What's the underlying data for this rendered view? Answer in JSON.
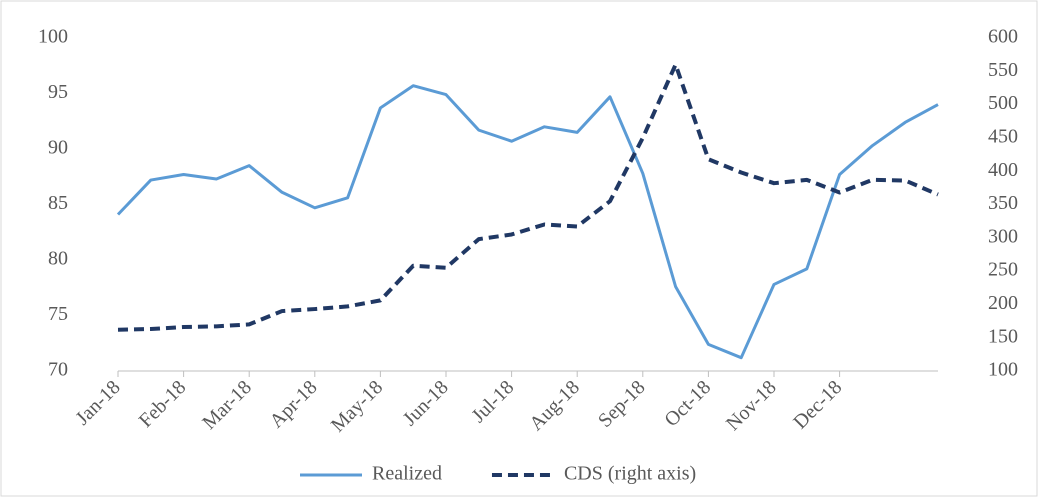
{
  "chart_data": {
    "type": "line",
    "categories": [
      "Jan-18",
      null,
      "Feb-18",
      null,
      "Mar-18",
      null,
      "Apr-18",
      null,
      "May-18",
      null,
      "Jun-18",
      null,
      "Jul-18",
      null,
      "Aug-18",
      null,
      "Sep-18",
      null,
      "Oct-18",
      null,
      "Nov-18",
      null,
      "Dec-18",
      null,
      null,
      null
    ],
    "series": [
      {
        "name": "Realized",
        "color": "#5b9bd5",
        "values": [
          84.1,
          87.2,
          87.7,
          87.3,
          88.5,
          86.1,
          84.7,
          85.6,
          93.7,
          95.7,
          94.9,
          91.7,
          90.7,
          92.0,
          91.5,
          94.7,
          87.8,
          77.6,
          72.4,
          71.2,
          77.8,
          79.2,
          87.7,
          90.3,
          92.4,
          94.0
        ]
      },
      {
        "name": "CDS (right axis)",
        "color": "#203864",
        "axis": "y2",
        "dashed": true,
        "values": [
          162,
          163,
          166,
          167,
          170,
          190,
          193,
          197,
          206,
          258,
          255,
          298,
          305,
          320,
          317,
          355,
          450,
          560,
          418,
          398,
          382,
          387,
          368,
          387,
          386,
          365
        ]
      }
    ],
    "ylim": [
      70,
      100
    ],
    "yticks": [
      70,
      75,
      80,
      85,
      90,
      95,
      100
    ],
    "y2lim": [
      100,
      600
    ],
    "y2ticks": [
      100,
      150,
      200,
      250,
      300,
      350,
      400,
      450,
      500,
      550,
      600
    ],
    "legend": "bottom"
  }
}
